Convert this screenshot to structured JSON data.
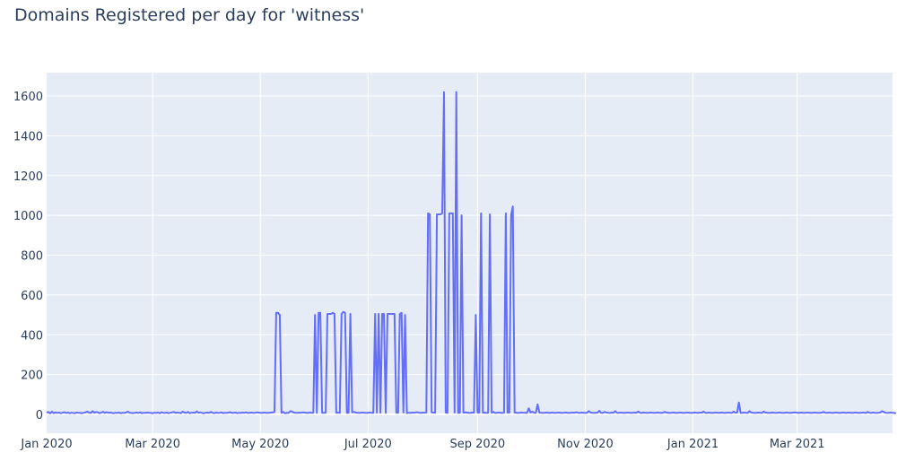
{
  "title": "Domains Registered per day for 'witness'",
  "colors": {
    "plot_bg": "#e5ecf6",
    "grid": "#ffffff",
    "line": "#636efa",
    "text": "#2a3f5f"
  },
  "chart_data": {
    "type": "line",
    "title": "Domains Registered per day for 'witness'",
    "xlabel": "",
    "ylabel": "",
    "start_date": "2020-01-01",
    "x_tick_labels": [
      "Jan 2020",
      "Mar 2020",
      "May 2020",
      "Jul 2020",
      "Sep 2020",
      "Nov 2020",
      "Jan 2021",
      "Mar 2021"
    ],
    "x_tick_day_index": [
      0,
      60,
      121,
      182,
      244,
      305,
      366,
      425
    ],
    "y_tick_labels": [
      "0",
      "200",
      "400",
      "600",
      "800",
      "1000",
      "1200",
      "1400",
      "1600"
    ],
    "y_ticks": [
      0,
      200,
      400,
      600,
      800,
      1000,
      1200,
      1400,
      1600
    ],
    "ylim": [
      -90,
      1720
    ],
    "xlim_days": [
      0,
      479
    ],
    "grid": true,
    "legend": "none",
    "series": [
      {
        "name": "witness",
        "spikes": [
          {
            "day": 130,
            "value": 510
          },
          {
            "day": 131,
            "value": 510
          },
          {
            "day": 132,
            "value": 500
          },
          {
            "day": 152,
            "value": 500
          },
          {
            "day": 154,
            "value": 510
          },
          {
            "day": 155,
            "value": 510
          },
          {
            "day": 159,
            "value": 505
          },
          {
            "day": 160,
            "value": 505
          },
          {
            "day": 161,
            "value": 505
          },
          {
            "day": 162,
            "value": 510
          },
          {
            "day": 163,
            "value": 505
          },
          {
            "day": 167,
            "value": 505
          },
          {
            "day": 168,
            "value": 515
          },
          {
            "day": 169,
            "value": 510
          },
          {
            "day": 172,
            "value": 505
          },
          {
            "day": 186,
            "value": 505
          },
          {
            "day": 188,
            "value": 505
          },
          {
            "day": 190,
            "value": 505
          },
          {
            "day": 191,
            "value": 505
          },
          {
            "day": 193,
            "value": 505
          },
          {
            "day": 194,
            "value": 505
          },
          {
            "day": 195,
            "value": 505
          },
          {
            "day": 196,
            "value": 505
          },
          {
            "day": 197,
            "value": 505
          },
          {
            "day": 200,
            "value": 505
          },
          {
            "day": 201,
            "value": 510
          },
          {
            "day": 203,
            "value": 500
          },
          {
            "day": 216,
            "value": 1010
          },
          {
            "day": 217,
            "value": 1005
          },
          {
            "day": 221,
            "value": 1005
          },
          {
            "day": 222,
            "value": 1005
          },
          {
            "day": 223,
            "value": 1005
          },
          {
            "day": 224,
            "value": 1010
          },
          {
            "day": 225,
            "value": 1620
          },
          {
            "day": 228,
            "value": 1010
          },
          {
            "day": 229,
            "value": 1010
          },
          {
            "day": 230,
            "value": 1010
          },
          {
            "day": 232,
            "value": 1620
          },
          {
            "day": 235,
            "value": 1000
          },
          {
            "day": 243,
            "value": 500
          },
          {
            "day": 246,
            "value": 1010
          },
          {
            "day": 251,
            "value": 1005
          },
          {
            "day": 260,
            "value": 1010
          },
          {
            "day": 263,
            "value": 1000
          },
          {
            "day": 264,
            "value": 1045
          },
          {
            "day": 273,
            "value": 30
          },
          {
            "day": 278,
            "value": 50
          },
          {
            "day": 392,
            "value": 60
          }
        ],
        "baseline_values": [
          8,
          12,
          5,
          14,
          6,
          10,
          7,
          9,
          6,
          8,
          11,
          7,
          9,
          6,
          8,
          7,
          6,
          9,
          8,
          7,
          6,
          8,
          10,
          14,
          9,
          7,
          16,
          8,
          12,
          10,
          6,
          9,
          13,
          7,
          11,
          8,
          9,
          7,
          6,
          8,
          7,
          9,
          6,
          8,
          7,
          9,
          14,
          8,
          7,
          6,
          8,
          9,
          7,
          10,
          6,
          8,
          7,
          9,
          8,
          7,
          6,
          8,
          7,
          9,
          6,
          11,
          8,
          7,
          9,
          6,
          8,
          10,
          12,
          7,
          9,
          8,
          6,
          14,
          9,
          7,
          12,
          6,
          8,
          9,
          7,
          15,
          8,
          10,
          7,
          6,
          8,
          9,
          7,
          12,
          8,
          6,
          9,
          7,
          8,
          10,
          6,
          8,
          7,
          9,
          11,
          7,
          8,
          9,
          6,
          8,
          7,
          9,
          8,
          10,
          7,
          8,
          9,
          7,
          8,
          10,
          9,
          8,
          7,
          9,
          8,
          7,
          8,
          9,
          10,
          12,
          8,
          6,
          8,
          7,
          12,
          5,
          8,
          7,
          16,
          14,
          9,
          8,
          7,
          9,
          8,
          10,
          9,
          8,
          7,
          9,
          8,
          8,
          9,
          7,
          8,
          9,
          8,
          7,
          9,
          8,
          7,
          9,
          8,
          7,
          8,
          9,
          7,
          8,
          9,
          8,
          7,
          8,
          9,
          10,
          12,
          9,
          8,
          7,
          8,
          9,
          8,
          7,
          8,
          9,
          8,
          7,
          9,
          8,
          7,
          8,
          9,
          8,
          7,
          8,
          9,
          8,
          7,
          8,
          9,
          7,
          8,
          10,
          9,
          8,
          6,
          8,
          7,
          9,
          8,
          10,
          11,
          8,
          7,
          9,
          8,
          9,
          7,
          8,
          10,
          9,
          8,
          7,
          9,
          8,
          7,
          8,
          9,
          7,
          8,
          9,
          8,
          9,
          8,
          7,
          8,
          9,
          8,
          10,
          9,
          7,
          8,
          9,
          8,
          7,
          9,
          8,
          7,
          8,
          9,
          7,
          8,
          9,
          8,
          12,
          7,
          8,
          9,
          8,
          7,
          8,
          9,
          8,
          9,
          10,
          11,
          9,
          8,
          7,
          8,
          9,
          8,
          8,
          7,
          8,
          9,
          14,
          8,
          7,
          8,
          9,
          8,
          7,
          8,
          9,
          8,
          7,
          9,
          8,
          7,
          8,
          9,
          8,
          7,
          8,
          9,
          8,
          7,
          8,
          9,
          8,
          11,
          8,
          7,
          9,
          8,
          7,
          8,
          16,
          9,
          8,
          7,
          8,
          9,
          18,
          7,
          8,
          12,
          9,
          8,
          7,
          9,
          8,
          16,
          8,
          7,
          9,
          8,
          7,
          8,
          9,
          8,
          7,
          8,
          9,
          8,
          14,
          8,
          7,
          9,
          8,
          7,
          8,
          9,
          8,
          7,
          8,
          9,
          8,
          7,
          8,
          12,
          9,
          8,
          7,
          8,
          9,
          8,
          7,
          8,
          9,
          8,
          7,
          8,
          9,
          8,
          7,
          8,
          9,
          8,
          7,
          9,
          8,
          14,
          8,
          7,
          9,
          8,
          7,
          8,
          9,
          8,
          7,
          9,
          8,
          7,
          8,
          9,
          8,
          7,
          14,
          8,
          9,
          8,
          7,
          8,
          9,
          8,
          7,
          16,
          9,
          8,
          7,
          8,
          9,
          8,
          7,
          14,
          9,
          8,
          7,
          8,
          9,
          8,
          7,
          8,
          9,
          8,
          7,
          8,
          9,
          8,
          7,
          8,
          9,
          10,
          8,
          7,
          9,
          8,
          7,
          8,
          9,
          8,
          7,
          8,
          9,
          8,
          7,
          8,
          9,
          12,
          8,
          7,
          9,
          8,
          7,
          8,
          9,
          8,
          7,
          8,
          9,
          8,
          7,
          9,
          8,
          7,
          8,
          9,
          8,
          7,
          8,
          9,
          8,
          7,
          12,
          8,
          7,
          9,
          8,
          7,
          8,
          9,
          16,
          12,
          8,
          7,
          8,
          9,
          8,
          7,
          5
        ]
      }
    ]
  }
}
